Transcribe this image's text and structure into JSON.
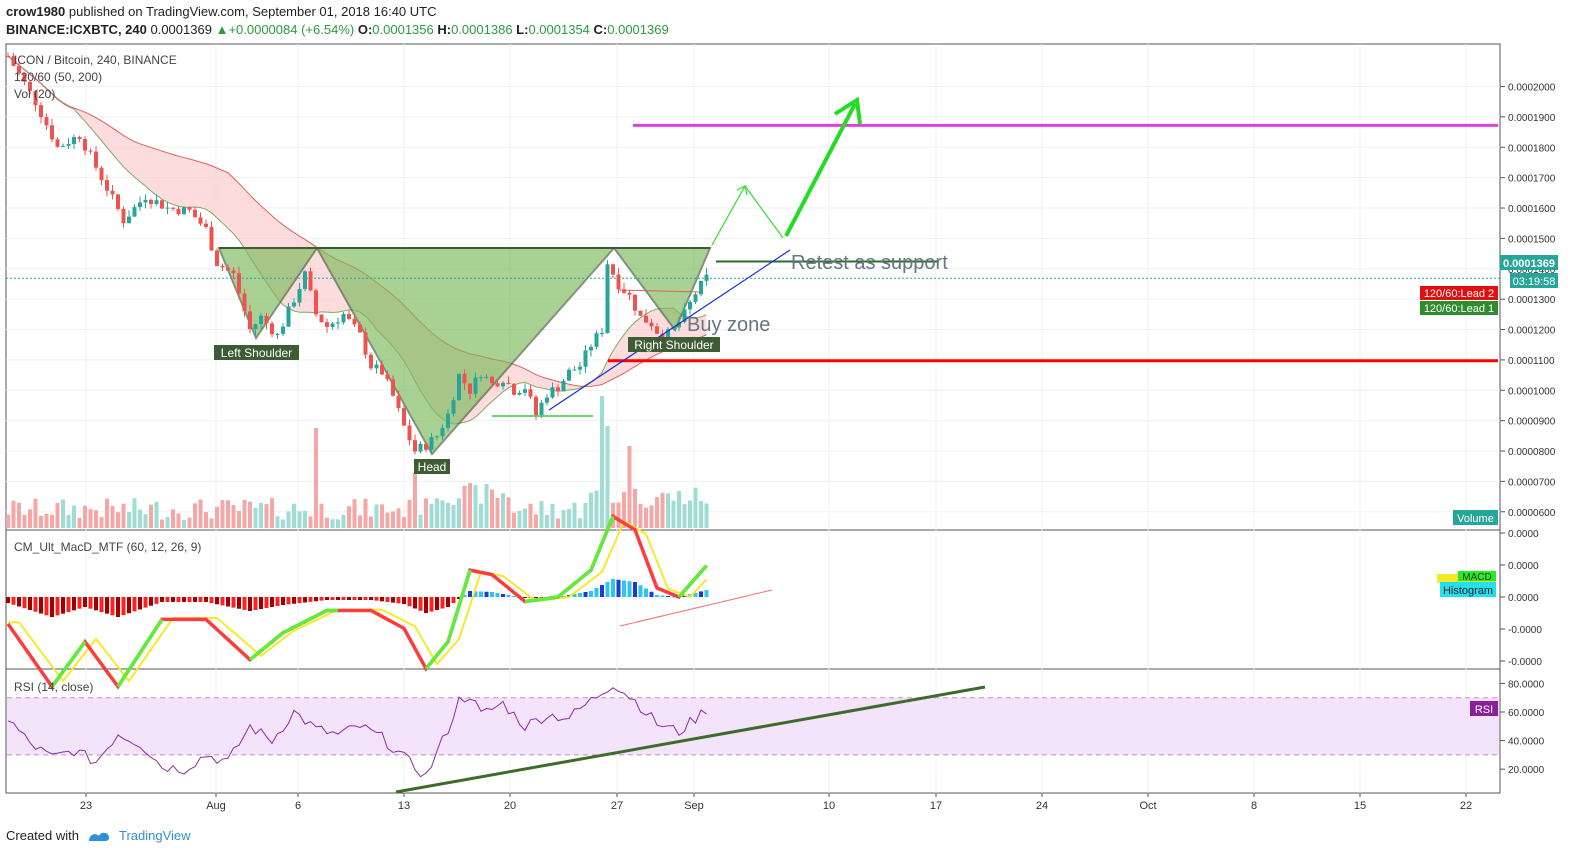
{
  "header": {
    "author": "crow1980",
    "published_text": "published on TradingView.com, September 01, 2018 16:40 UTC",
    "symbol": "BINANCE:ICXBTC, 240",
    "last": "0.0001369",
    "change": "+0.0000084 (+6.54%)",
    "o_label": "O:",
    "o_value": "0.0001356",
    "h_label": "H:",
    "h_value": "0.0001386",
    "l_label": "L:",
    "l_value": "0.0001354",
    "c_label": "C:",
    "c_value": "0.0001369"
  },
  "legend": {
    "title": "ICON / Bitcoin, 240, BINANCE",
    "ma": "120/60 (50, 200)",
    "vol": "Vol (20)"
  },
  "annotations": {
    "left_shoulder": "Left Shoulder",
    "head": "Head",
    "right_shoulder": "Right Shoulder",
    "buy_zone": "Buy zone",
    "retest": "Retest as support"
  },
  "badges": {
    "price": "0.0001369",
    "countdown": "03:19:58",
    "lead2": "120/60:Lead 2",
    "lead1": "120/60:Lead 1",
    "volume": "Volume",
    "macd": "MACD",
    "histogram": "Histogram",
    "rsi": "RSI"
  },
  "macd_panel": {
    "title": "CM_Ult_MacD_MTF (60, 12, 26, 9)"
  },
  "rsi_panel": {
    "title": "RSI (14, close)"
  },
  "footer": {
    "created_with": "Created with",
    "brand": "TradingView"
  },
  "colors": {
    "up": "#26a69a",
    "down": "#ef5350",
    "pattern": "#6fb556",
    "target": "#e040e0",
    "support": "#ff0000",
    "arrow": "#22dd22",
    "rsi_band": "#f3e3fb"
  },
  "chart_data": {
    "type": "line",
    "title": "ICON / Bitcoin, 240, BINANCE",
    "price_ticks": [
      "0.0002000",
      "0.0001900",
      "0.0001800",
      "0.0001700",
      "0.0001600",
      "0.0001500",
      "0.0001400",
      "0.0001300",
      "0.0001200",
      "0.0001100",
      "0.0001000",
      "0.0000900",
      "0.0000800",
      "0.0000700",
      "0.0000600"
    ],
    "x_ticks": [
      "23",
      "Aug",
      "6",
      "13",
      "20",
      "27",
      "Sep",
      "10",
      "17",
      "24",
      "Oct",
      "8",
      "15",
      "22"
    ],
    "macd_ticks": [
      "0.0000",
      "0.0000",
      "0.0000",
      "-0.0000",
      "-0.0000"
    ],
    "rsi_ticks": [
      "80.0000",
      "60.0000",
      "40.0000",
      "20.0000"
    ],
    "price_range": [
      5.4e-05,
      0.000214
    ],
    "levels": {
      "target": 0.0001872,
      "support": 0.0001097,
      "neckline": 0.0001414,
      "retest": 0.0001424,
      "current": 0.0001369
    },
    "price_path": [
      [
        0,
        0.00021
      ],
      [
        5,
        0.000195
      ],
      [
        9,
        0.00018
      ],
      [
        13,
        0.000184
      ],
      [
        17,
        0.00017
      ],
      [
        21,
        0.000156
      ],
      [
        25,
        0.000164
      ],
      [
        29,
        0.00016
      ],
      [
        33,
        0.000159
      ],
      [
        36,
        0.000153
      ],
      [
        38,
        0.000142
      ],
      [
        41,
        0.000138
      ],
      [
        44,
        0.00012
      ],
      [
        46,
        0.000124
      ],
      [
        49,
        0.000118
      ],
      [
        52,
        0.00013
      ],
      [
        54,
        0.000138
      ],
      [
        56,
        0.000125
      ],
      [
        58,
        0.000121
      ],
      [
        61,
        0.000125
      ],
      [
        64,
        0.000118
      ],
      [
        66,
        0.000108
      ],
      [
        68,
        0.000106
      ],
      [
        70,
        9.8e-05
      ],
      [
        72,
        8.8e-05
      ],
      [
        74,
        8e-05
      ],
      [
        76,
        8.2e-05
      ],
      [
        78,
        8.5e-05
      ],
      [
        80,
        9.2e-05
      ],
      [
        82,
        0.000105
      ],
      [
        84,
        0.0001
      ],
      [
        86,
        0.000106
      ],
      [
        88,
        0.000102
      ],
      [
        90,
        0.000104
      ],
      [
        92,
        0.0001
      ],
      [
        94,
        0.000101
      ],
      [
        96,
        9.2e-05
      ],
      [
        98,
        9.9e-05
      ],
      [
        100,
        0.000101
      ],
      [
        102,
        0.000106
      ],
      [
        104,
        0.000108
      ],
      [
        106,
        0.000115
      ],
      [
        108,
        0.00012
      ],
      [
        109,
        0.000142
      ],
      [
        111,
        0.000135
      ],
      [
        113,
        0.000131
      ],
      [
        115,
        0.000124
      ],
      [
        117,
        0.000122
      ],
      [
        119,
        0.000117
      ],
      [
        121,
        0.00012
      ],
      [
        123,
        0.000125
      ],
      [
        125,
        0.000132
      ],
      [
        127,
        0.0001369
      ]
    ],
    "macd_path": [
      [
        0,
        -0.6
      ],
      [
        8,
        -2.0
      ],
      [
        14,
        -1.0
      ],
      [
        20,
        -2.0
      ],
      [
        28,
        -0.5
      ],
      [
        36,
        -0.5
      ],
      [
        44,
        -1.4
      ],
      [
        50,
        -0.8
      ],
      [
        58,
        -0.3
      ],
      [
        66,
        -0.3
      ],
      [
        72,
        -0.7
      ],
      [
        76,
        -1.6
      ],
      [
        80,
        -1.0
      ],
      [
        84,
        0.6
      ],
      [
        88,
        0.5
      ],
      [
        94,
        -0.1
      ],
      [
        100,
        0.0
      ],
      [
        106,
        0.6
      ],
      [
        110,
        1.8
      ],
      [
        114,
        1.5
      ],
      [
        118,
        0.2
      ],
      [
        122,
        0.0
      ],
      [
        127,
        0.7
      ]
    ],
    "rsi_path": [
      [
        0,
        55
      ],
      [
        4,
        38
      ],
      [
        8,
        28
      ],
      [
        12,
        33
      ],
      [
        16,
        25
      ],
      [
        20,
        45
      ],
      [
        24,
        38
      ],
      [
        28,
        22
      ],
      [
        32,
        20
      ],
      [
        36,
        30
      ],
      [
        40,
        25
      ],
      [
        44,
        50
      ],
      [
        48,
        40
      ],
      [
        52,
        60
      ],
      [
        56,
        48
      ],
      [
        60,
        44
      ],
      [
        64,
        50
      ],
      [
        68,
        42
      ],
      [
        72,
        28
      ],
      [
        76,
        15
      ],
      [
        80,
        48
      ],
      [
        82,
        68
      ],
      [
        84,
        72
      ],
      [
        86,
        58
      ],
      [
        90,
        66
      ],
      [
        94,
        50
      ],
      [
        98,
        58
      ],
      [
        102,
        56
      ],
      [
        106,
        68
      ],
      [
        110,
        80
      ],
      [
        114,
        68
      ],
      [
        118,
        52
      ],
      [
        122,
        46
      ],
      [
        127,
        62
      ]
    ],
    "rsi_trend": [
      [
        0,
        10
      ],
      [
        150,
        76
      ]
    ]
  }
}
